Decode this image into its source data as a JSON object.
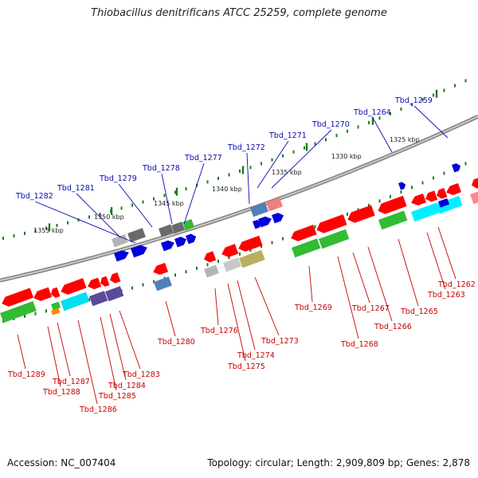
{
  "title": "Thiobacillus denitrificans ATCC 25259, complete genome",
  "footer": {
    "accession": "Accession: NC_007404",
    "summary": "Topology: circular; Length: 2,909,809 bp; Genes: 2,878"
  },
  "colors": {
    "forward_label": "#0a0ab4",
    "reverse_label": "#c80000",
    "backbone": "#8a8a8a",
    "tick": "#1e7a1e"
  },
  "kbp_labels": [
    "1355 kbp",
    "1350 kbp",
    "1345 kbp",
    "1340 kbp",
    "1335 kbp",
    "1330 kbp",
    "1325 kbp"
  ],
  "forward_genes": [
    "Tbd_1282",
    "Tbd_1281",
    "Tbd_1279",
    "Tbd_1278",
    "Tbd_1277",
    "Tbd_1272",
    "Tbd_1271",
    "Tbd_1270",
    "Tbd_1264",
    "Tbd_1259"
  ],
  "reverse_genes": [
    "Tbd_1289",
    "Tbd_1288",
    "Tbd_1287",
    "Tbd_1286",
    "Tbd_1285",
    "Tbd_1284",
    "Tbd_1283",
    "Tbd_1280",
    "Tbd_1276",
    "Tbd_1275",
    "Tbd_1274",
    "Tbd_1273",
    "Tbd_1269",
    "Tbd_1268",
    "Tbd_1267",
    "Tbd_1266",
    "Tbd_1265",
    "Tbd_1263",
    "Tbd_1262"
  ]
}
